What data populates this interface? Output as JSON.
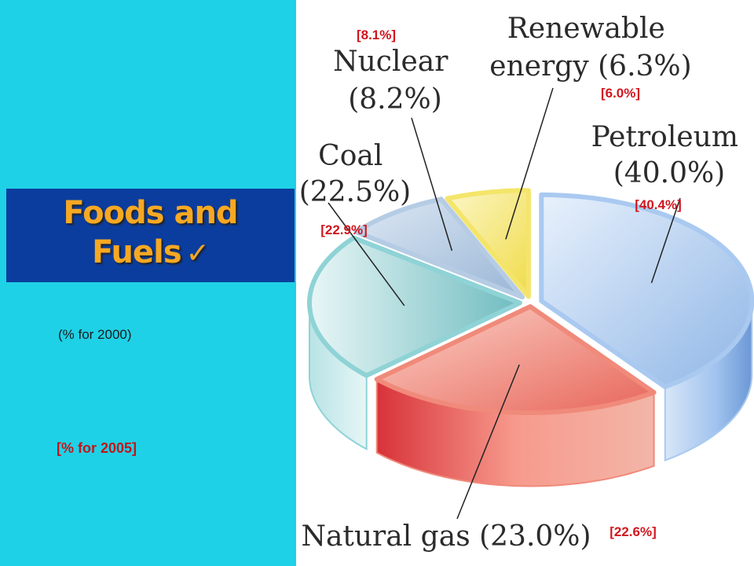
{
  "slide": {
    "title_line1": "Foods and",
    "title_line2": "Fuels",
    "title_check": "✓",
    "subtitle_2000": "(% for 2000)",
    "subtitle_2005": "[% for 2005]"
  },
  "colors": {
    "left_bg": "#1fd1e6",
    "title_band": "#0b3d9f",
    "title_text": "#f6a823",
    "red_label": "#d0161e"
  },
  "chart_data": {
    "type": "pie",
    "style": "3d-exploded",
    "series": [
      {
        "name": "(% for 2000)",
        "values": [
          {
            "category": "Petroleum",
            "value": 40.0
          },
          {
            "category": "Natural gas",
            "value": 23.0
          },
          {
            "category": "Coal",
            "value": 22.5
          },
          {
            "category": "Nuclear",
            "value": 8.2
          },
          {
            "category": "Renewable energy",
            "value": 6.3
          }
        ]
      },
      {
        "name": "[% for 2005]",
        "values": [
          {
            "category": "Petroleum",
            "value": 40.4
          },
          {
            "category": "Natural gas",
            "value": 22.6
          },
          {
            "category": "Coal",
            "value": 22.9
          },
          {
            "category": "Nuclear",
            "value": 8.1
          },
          {
            "category": "Renewable energy",
            "value": 6.0
          }
        ]
      }
    ],
    "slices": [
      {
        "key": "petroleum",
        "category": "Petroleum",
        "label_lines": [
          "Petroleum",
          "(40.0%)"
        ],
        "label_2005": "[40.4%]",
        "color": "#a9c9f0"
      },
      {
        "key": "natural_gas",
        "category": "Natural gas",
        "label_lines": [
          "Natural gas (23.0%)"
        ],
        "label_2005": "[22.6%]",
        "color": "#f08a7a"
      },
      {
        "key": "coal",
        "category": "Coal",
        "label_lines": [
          "Coal",
          "(22.5%)"
        ],
        "label_2005": "[22.9%]",
        "color": "#8fd3d6"
      },
      {
        "key": "nuclear",
        "category": "Nuclear",
        "label_lines": [
          "Nuclear",
          "(8.2%)"
        ],
        "label_2005": "[8.1%]",
        "color": "#b5cce4"
      },
      {
        "key": "renewable",
        "category": "Renewable energy",
        "label_lines": [
          "Renewable",
          "energy (6.3%)"
        ],
        "label_2005": "[6.0%]",
        "color": "#f4e56a"
      }
    ]
  }
}
